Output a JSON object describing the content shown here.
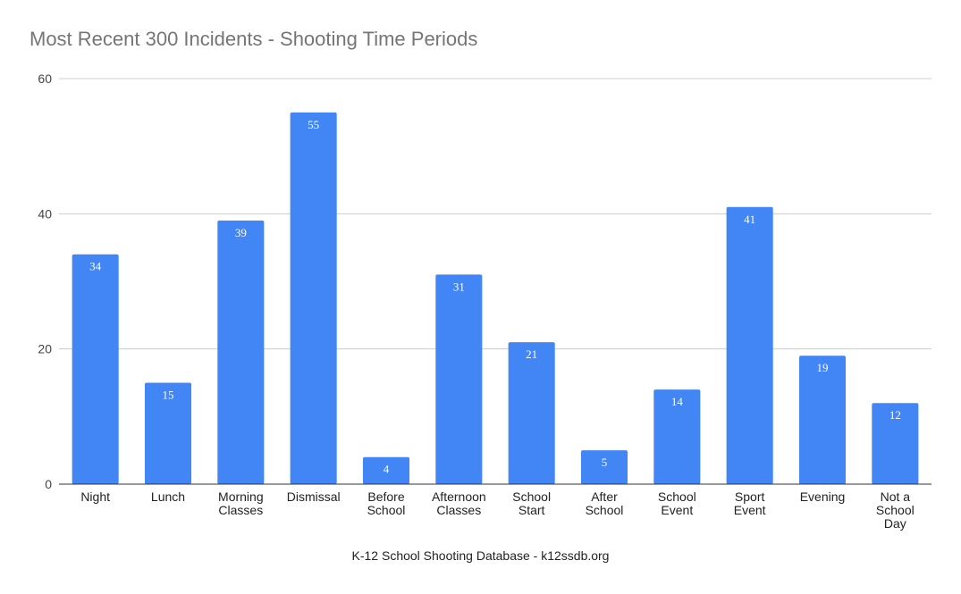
{
  "chart_data": {
    "type": "bar",
    "title": "Most Recent 300 Incidents - Shooting Time Periods",
    "xlabel": "K-12 School Shooting Database - k12ssdb.org",
    "ylabel": "",
    "ylim": [
      0,
      60
    ],
    "yticks": [
      0,
      20,
      40,
      60
    ],
    "grid": true,
    "legend": "none",
    "categories": [
      [
        "Night"
      ],
      [
        "Lunch"
      ],
      [
        "Morning",
        "Classes"
      ],
      [
        "Dismissal"
      ],
      [
        "Before",
        "School"
      ],
      [
        "Afternoon",
        "Classes"
      ],
      [
        "School",
        "Start"
      ],
      [
        "After",
        "School"
      ],
      [
        "School",
        "Event"
      ],
      [
        "Sport",
        "Event"
      ],
      [
        "Evening"
      ],
      [
        "Not a",
        "School",
        "Day"
      ]
    ],
    "values": [
      34,
      15,
      39,
      55,
      4,
      31,
      21,
      5,
      14,
      41,
      19,
      12
    ],
    "colors": {
      "bar": "#4285f4",
      "grid": "#cccccc",
      "axis": "#333333",
      "label": "#ffffff"
    }
  }
}
